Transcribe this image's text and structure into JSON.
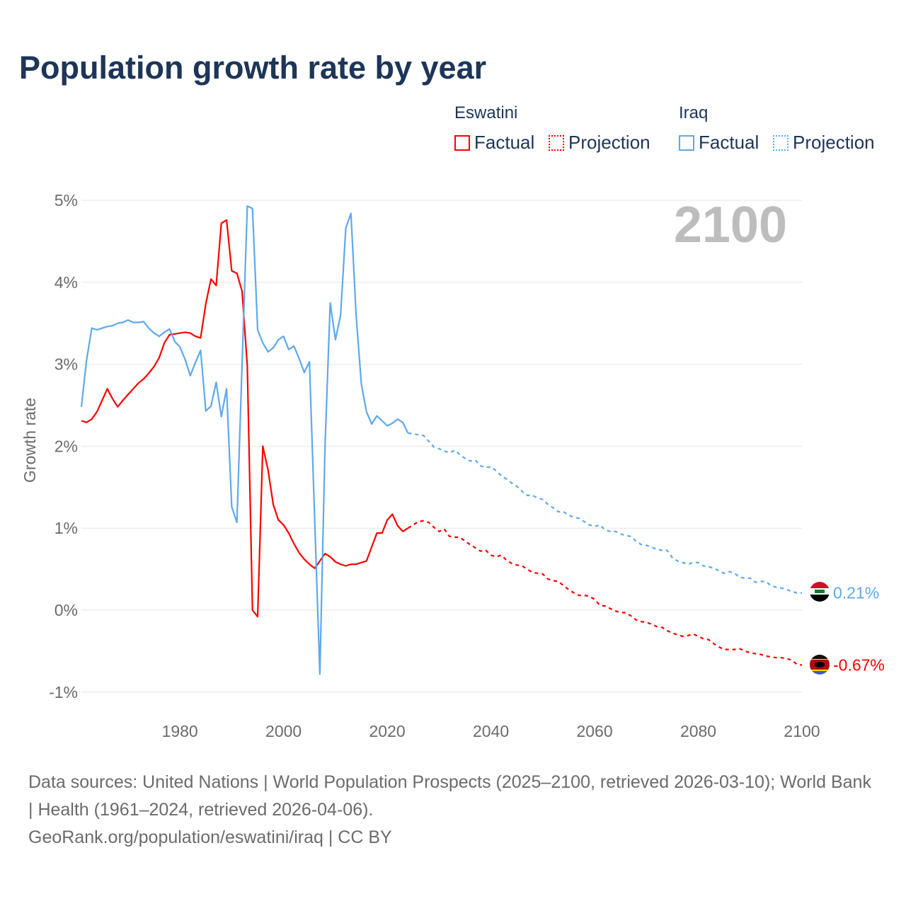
{
  "title": "Population growth rate by year",
  "legend": {
    "groups": [
      {
        "country": "Eswatini",
        "factual": "Factual",
        "projection": "Projection",
        "color": "#ff0000"
      },
      {
        "country": "Iraq",
        "factual": "Factual",
        "projection": "Projection",
        "color": "#5ea8ec"
      }
    ]
  },
  "year_display": "2100",
  "footer": {
    "sources": "Data sources: United Nations | World Population Prospects (2025–2100, retrieved 2026-03-10); World Bank | Health (1961–2024, retrieved 2026-04-06).",
    "credit": "GeoRank.org/population/eswatini/iraq | CC BY"
  },
  "chart_data": {
    "type": "line",
    "title": "Population growth rate by year",
    "xlabel": "",
    "ylabel": "Growth rate",
    "xlim": [
      1961,
      2100
    ],
    "ylim": [
      -1,
      5
    ],
    "x_ticks": [
      1980,
      2000,
      2020,
      2040,
      2060,
      2080,
      2100
    ],
    "x_tick_labels": [
      "1980",
      "2000",
      "2020",
      "2040",
      "2060",
      "2080",
      "2100"
    ],
    "y_ticks": [
      5,
      4,
      3,
      2,
      1,
      0,
      -1
    ],
    "y_tick_labels": [
      "5%",
      "4%",
      "3%",
      "2%",
      "1%",
      "0%",
      "-1%"
    ],
    "grid": true,
    "legend_position": "top-right",
    "series": [
      {
        "name": "Eswatini",
        "color": "#ff0000",
        "end_label": "-0.67%",
        "factual_start": 1961,
        "factual": [
          2.31,
          2.29,
          2.33,
          2.42,
          2.56,
          2.7,
          2.58,
          2.48,
          2.56,
          2.63,
          2.7,
          2.77,
          2.82,
          2.89,
          2.97,
          3.08,
          3.26,
          3.36,
          3.37,
          3.38,
          3.39,
          3.38,
          3.34,
          3.32,
          3.74,
          4.04,
          3.96,
          4.72,
          4.76,
          4.14,
          4.11,
          3.89,
          2.98,
          0.0,
          -0.08,
          2.0,
          1.71,
          1.29,
          1.1,
          1.04,
          0.94,
          0.81,
          0.7,
          0.62,
          0.56,
          0.51,
          0.6,
          0.69,
          0.65,
          0.59,
          0.56,
          0.54,
          0.56,
          0.56,
          0.58,
          0.6,
          0.77,
          0.94,
          0.94,
          1.1,
          1.17,
          1.03,
          0.96,
          1.0
        ],
        "projection_start": 2025,
        "projection": [
          1.04,
          1.08,
          1.09,
          1.07,
          1.01,
          0.96,
          0.99,
          0.9,
          0.89,
          0.89,
          0.84,
          0.8,
          0.76,
          0.72,
          0.73,
          0.67,
          0.65,
          0.67,
          0.61,
          0.57,
          0.55,
          0.54,
          0.5,
          0.46,
          0.45,
          0.44,
          0.38,
          0.36,
          0.35,
          0.3,
          0.25,
          0.21,
          0.18,
          0.18,
          0.17,
          0.13,
          0.06,
          0.05,
          0.02,
          -0.01,
          -0.03,
          -0.03,
          -0.07,
          -0.12,
          -0.14,
          -0.15,
          -0.17,
          -0.2,
          -0.21,
          -0.25,
          -0.28,
          -0.3,
          -0.32,
          -0.31,
          -0.29,
          -0.32,
          -0.35,
          -0.36,
          -0.41,
          -0.45,
          -0.48,
          -0.48,
          -0.48,
          -0.47,
          -0.5,
          -0.52,
          -0.53,
          -0.54,
          -0.56,
          -0.57,
          -0.58,
          -0.58,
          -0.59,
          -0.61,
          -0.66,
          -0.67
        ]
      },
      {
        "name": "Iraq",
        "color": "#5ea8ec",
        "end_label": "0.21%",
        "factual_start": 1961,
        "factual": [
          2.48,
          3.05,
          3.44,
          3.42,
          3.44,
          3.46,
          3.47,
          3.5,
          3.51,
          3.54,
          3.51,
          3.51,
          3.52,
          3.44,
          3.38,
          3.34,
          3.39,
          3.43,
          3.28,
          3.21,
          3.06,
          2.86,
          3.02,
          3.17,
          2.43,
          2.49,
          2.78,
          2.36,
          2.7,
          1.26,
          1.07,
          3.0,
          4.93,
          4.9,
          3.42,
          3.26,
          3.15,
          3.2,
          3.3,
          3.34,
          3.18,
          3.22,
          3.07,
          2.9,
          3.03,
          1.1,
          -0.78,
          2.0,
          3.75,
          3.3,
          3.6,
          4.66,
          4.84,
          3.59,
          2.76,
          2.42,
          2.27,
          2.37,
          2.31,
          2.25,
          2.28,
          2.33,
          2.29,
          2.16
        ],
        "projection_start": 2025,
        "projection": [
          2.15,
          2.14,
          2.13,
          2.06,
          1.99,
          1.97,
          1.94,
          1.92,
          1.95,
          1.9,
          1.85,
          1.82,
          1.83,
          1.76,
          1.74,
          1.75,
          1.7,
          1.64,
          1.6,
          1.55,
          1.51,
          1.45,
          1.4,
          1.4,
          1.37,
          1.35,
          1.29,
          1.25,
          1.2,
          1.2,
          1.16,
          1.13,
          1.12,
          1.08,
          1.04,
          1.02,
          1.04,
          0.98,
          0.96,
          0.96,
          0.93,
          0.91,
          0.9,
          0.84,
          0.8,
          0.79,
          0.77,
          0.74,
          0.73,
          0.73,
          0.64,
          0.6,
          0.58,
          0.56,
          0.58,
          0.58,
          0.54,
          0.53,
          0.51,
          0.48,
          0.45,
          0.47,
          0.45,
          0.4,
          0.39,
          0.39,
          0.34,
          0.35,
          0.35,
          0.3,
          0.28,
          0.27,
          0.25,
          0.23,
          0.21,
          0.21
        ]
      }
    ]
  }
}
